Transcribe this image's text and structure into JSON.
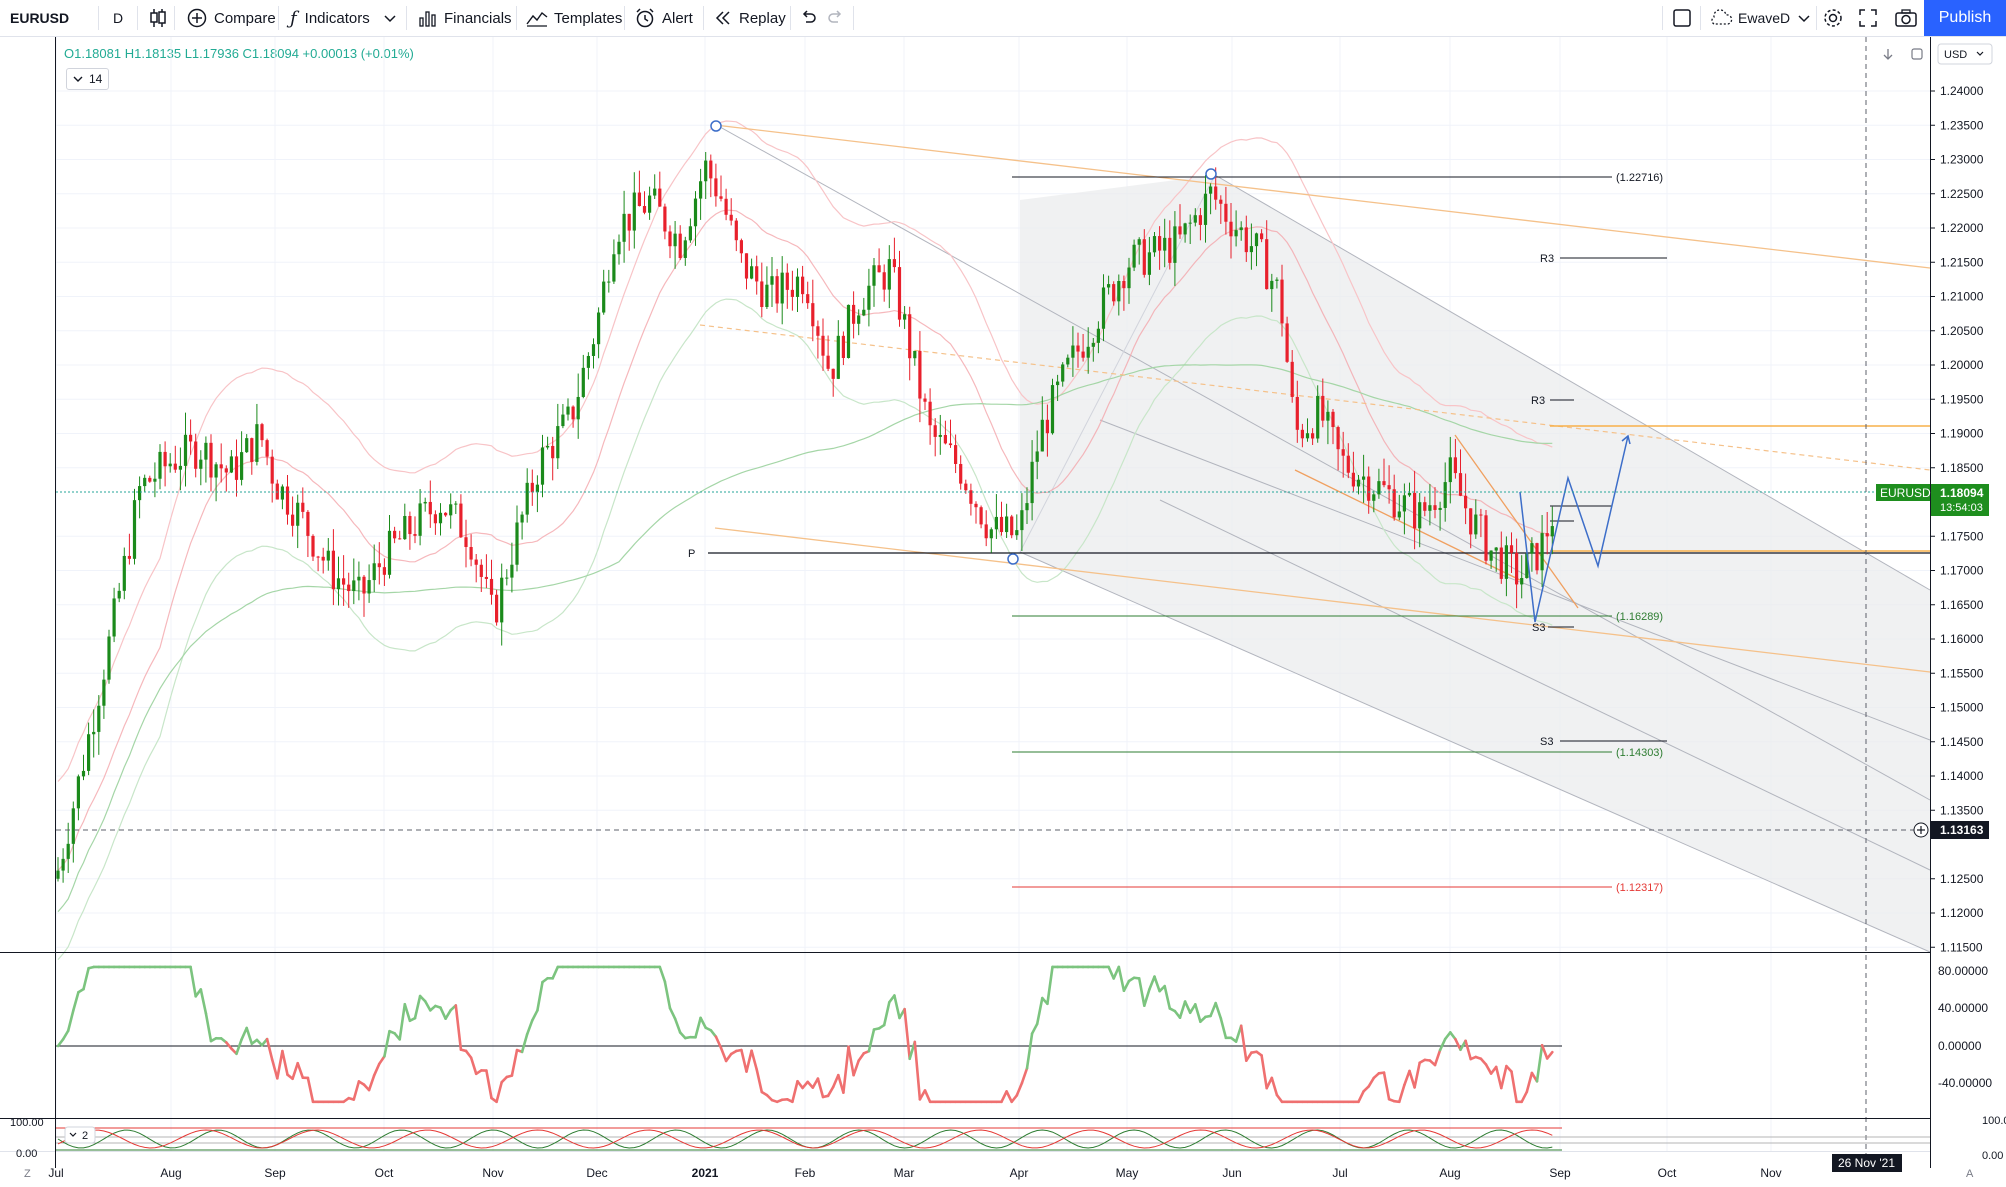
{
  "toolbar": {
    "symbol": "EURUSD",
    "interval": "D",
    "compare": "Compare",
    "indicators": "Indicators",
    "financials": "Financials",
    "templates": "Templates",
    "alert": "Alert",
    "replay": "Replay",
    "layout_name": "EwaveD",
    "publish": "Publish"
  },
  "legend": {
    "ohlc": "O1.18081 H1.18135 L1.17936 C1.18094 +0.00013 (+0.01%)",
    "indicator_param": "14"
  },
  "price_scale": {
    "currency": "USD",
    "ticks": [
      "1.24000",
      "1.23500",
      "1.23000",
      "1.22500",
      "1.22000",
      "1.21500",
      "1.21000",
      "1.20500",
      "1.20000",
      "1.19500",
      "1.19000",
      "1.18500",
      "1.17500",
      "1.17000",
      "1.16500",
      "1.16000",
      "1.15500",
      "1.15000",
      "1.14500",
      "1.14000",
      "1.13500",
      "1.12500",
      "1.12000",
      "1.11500"
    ],
    "symbol_badge": "EURUSD",
    "last_price": "1.18094",
    "countdown": "13:54:03",
    "crosshair_price": "1.13163"
  },
  "osc_scale": {
    "ticks": [
      "80.00000",
      "40.00000",
      "0.00000",
      "-40.00000"
    ]
  },
  "osc2_scale": {
    "ticks": [
      "100.00",
      "0.00"
    ],
    "left_ticks": [
      "100.00",
      "0.00"
    ],
    "param": "2"
  },
  "time_axis": {
    "labels": [
      "Jul",
      "Aug",
      "Sep",
      "Oct",
      "Nov",
      "Dec",
      "2021",
      "Feb",
      "Mar",
      "Apr",
      "May",
      "Jun",
      "Jul",
      "Aug",
      "Sep",
      "Oct",
      "Nov"
    ],
    "crosshair_date": "26 Nov '21",
    "z_label": "Z",
    "a_label": "A"
  },
  "annotations": {
    "fib_top": "(1.22716)",
    "fib_mid": "(1.16289)",
    "fib_low": "(1.14303)",
    "fib_red": "(1.12317)",
    "r3_upper": "R3",
    "r3_lower": "R3",
    "pivot": "P",
    "s3_upper": "S3",
    "s3_lower": "S3"
  },
  "colors": {
    "bull": "#26a69a",
    "candle_up": "#1b8a1b",
    "candle_down": "#e8202c",
    "accent": "#2962ff",
    "last_price_bg": "#1e8e1e"
  },
  "chart_data": {
    "type": "candlestick",
    "symbol": "EURUSD",
    "timeframe": "D",
    "x": [
      "Jul",
      "Aug",
      "Sep",
      "Oct",
      "Nov",
      "Dec",
      "2021",
      "Feb",
      "Mar",
      "Apr",
      "May",
      "Jun",
      "Jul",
      "Aug",
      "Sep"
    ],
    "close": [
      1.128,
      1.185,
      1.178,
      1.168,
      1.19,
      1.218,
      1.225,
      1.213,
      1.183,
      1.173,
      1.215,
      1.222,
      1.186,
      1.177,
      1.181
    ],
    "ylim": [
      1.113,
      1.245
    ],
    "last": 1.18094,
    "levels": [
      1.22716,
      1.16289,
      1.14303,
      1.12317
    ]
  }
}
